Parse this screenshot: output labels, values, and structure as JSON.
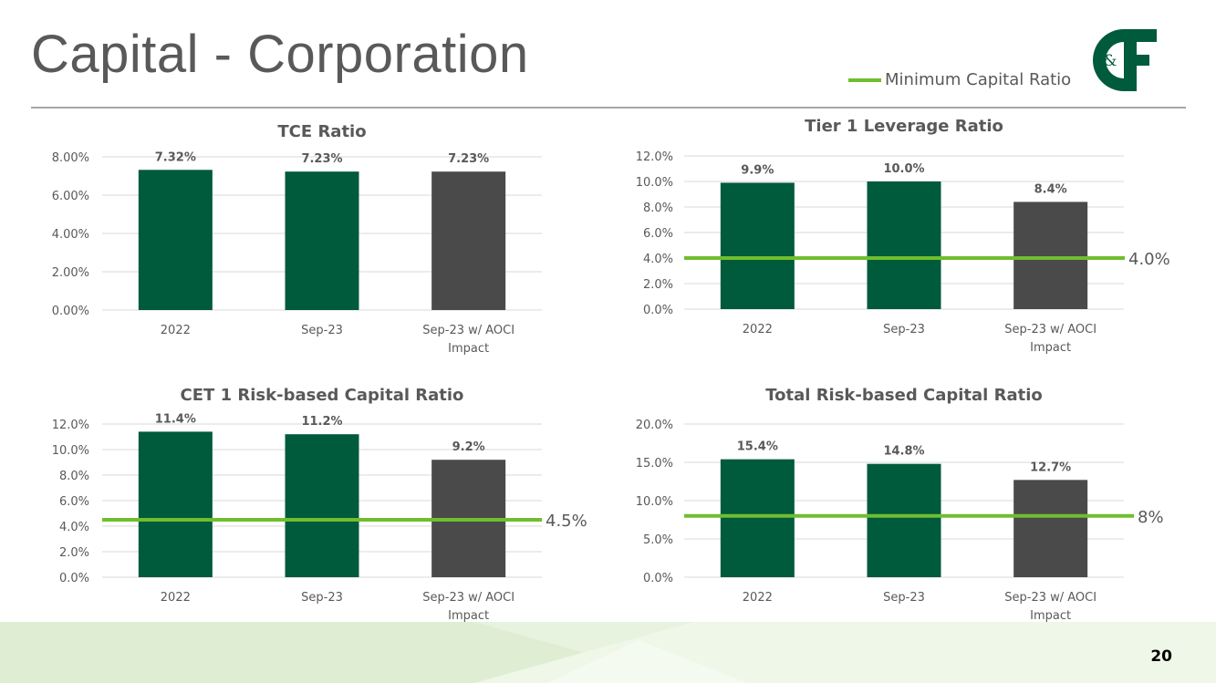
{
  "page": {
    "title": "Capital - Corporation",
    "page_number": "20",
    "legend_label": "Minimum Capital Ratio",
    "logo_text": "C&F"
  },
  "colors": {
    "green": "#005a3c",
    "gray": "#4a4a4a",
    "min_line": "#6fbe2e",
    "text": "#595959",
    "grid": "#d9d9d9"
  },
  "chart_data": [
    {
      "type": "bar",
      "title": "TCE Ratio",
      "categories": [
        "2022",
        "Sep-23",
        "Sep-23 w/ AOCI Impact"
      ],
      "values": [
        7.32,
        7.23,
        7.23
      ],
      "data_labels": [
        "7.32%",
        "7.23%",
        "7.23%"
      ],
      "ylim": [
        0,
        8
      ],
      "yticks": [
        0,
        2,
        4,
        6,
        8
      ],
      "ytick_labels": [
        "0.00%",
        "2.00%",
        "4.00%",
        "6.00%",
        "8.00%"
      ],
      "bar_colors": [
        "green",
        "green",
        "gray"
      ],
      "minimum": null,
      "minimum_label": null
    },
    {
      "type": "bar",
      "title": "Tier 1 Leverage Ratio",
      "categories": [
        "2022",
        "Sep-23",
        "Sep-23 w/ AOCI Impact"
      ],
      "values": [
        9.9,
        10.0,
        8.4
      ],
      "data_labels": [
        "9.9%",
        "10.0%",
        "8.4%"
      ],
      "ylim": [
        0,
        12
      ],
      "yticks": [
        0,
        2,
        4,
        6,
        8,
        10,
        12
      ],
      "ytick_labels": [
        "0.0%",
        "2.0%",
        "4.0%",
        "6.0%",
        "8.0%",
        "10.0%",
        "12.0%"
      ],
      "bar_colors": [
        "green",
        "green",
        "gray"
      ],
      "minimum": 4.0,
      "minimum_label": "4.0%"
    },
    {
      "type": "bar",
      "title": "CET 1 Risk-based Capital Ratio",
      "categories": [
        "2022",
        "Sep-23",
        "Sep-23 w/ AOCI Impact"
      ],
      "values": [
        11.4,
        11.2,
        9.2
      ],
      "data_labels": [
        "11.4%",
        "11.2%",
        "9.2%"
      ],
      "ylim": [
        0,
        12
      ],
      "yticks": [
        0,
        2,
        4,
        6,
        8,
        10,
        12
      ],
      "ytick_labels": [
        "0.0%",
        "2.0%",
        "4.0%",
        "6.0%",
        "8.0%",
        "10.0%",
        "12.0%"
      ],
      "bar_colors": [
        "green",
        "green",
        "gray"
      ],
      "minimum": 4.5,
      "minimum_label": "4.5%"
    },
    {
      "type": "bar",
      "title": "Total Risk-based Capital Ratio",
      "categories": [
        "2022",
        "Sep-23",
        "Sep-23 w/ AOCI Impact"
      ],
      "values": [
        15.4,
        14.8,
        12.7
      ],
      "data_labels": [
        "15.4%",
        "14.8%",
        "12.7%"
      ],
      "ylim": [
        0,
        20
      ],
      "yticks": [
        0,
        5,
        10,
        15,
        20
      ],
      "ytick_labels": [
        "0.0%",
        "5.0%",
        "10.0%",
        "15.0%",
        "20.0%"
      ],
      "bar_colors": [
        "green",
        "green",
        "gray"
      ],
      "minimum": 8,
      "minimum_label": "8%"
    }
  ]
}
